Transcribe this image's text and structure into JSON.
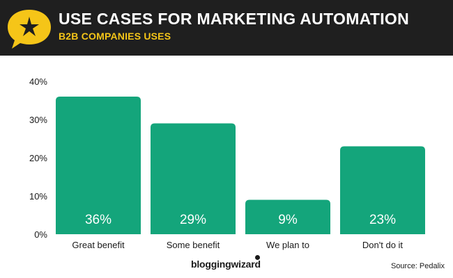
{
  "header": {
    "title": "USE CASES FOR MARKETING AUTOMATION",
    "subtitle": "B2B COMPANIES USES",
    "logo_icon": "star-speech-bubble-icon"
  },
  "colors": {
    "header_bg": "#1f1f1f",
    "accent": "#f5c518",
    "bar": "#14a57b"
  },
  "chart_data": {
    "type": "bar",
    "categories": [
      "Great benefit",
      "Some benefit",
      "We plan to",
      "Don't do it"
    ],
    "values": [
      36,
      29,
      9,
      23
    ],
    "data_labels": [
      "36%",
      "29%",
      "9%",
      "23%"
    ],
    "ylim": [
      0,
      40
    ],
    "yticks": [
      0,
      10,
      20,
      30,
      40
    ],
    "ytick_labels": [
      "0%",
      "10%",
      "20%",
      "30%",
      "40%"
    ],
    "grid": false,
    "legend": "none"
  },
  "footer": {
    "brand": "bloggingwizard",
    "source": "Source: Pedalix"
  }
}
